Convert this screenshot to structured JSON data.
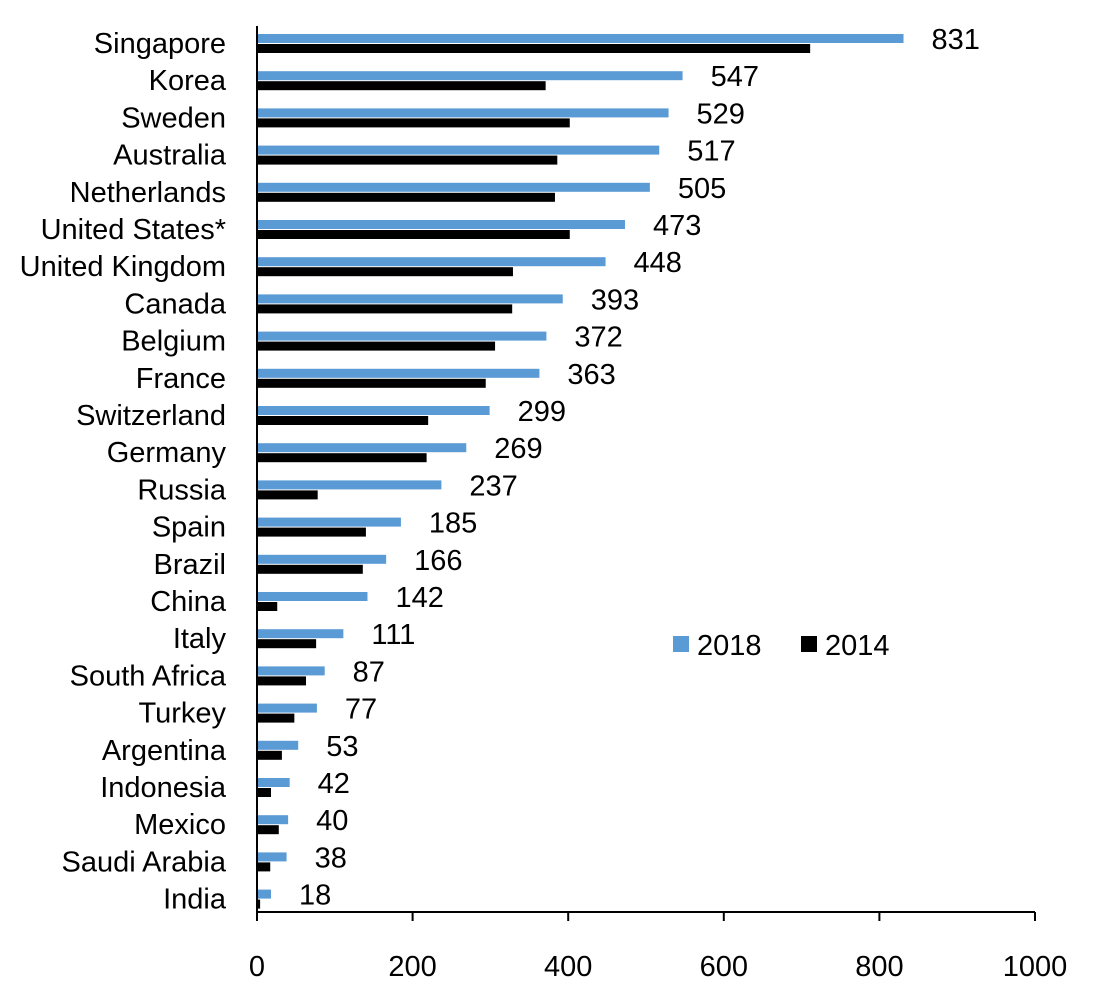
{
  "chart_data": {
    "type": "bar",
    "orientation": "horizontal",
    "title": "",
    "xlabel": "",
    "ylabel": "",
    "xlim": [
      0,
      1000
    ],
    "xticks": [
      0,
      200,
      400,
      600,
      800,
      1000
    ],
    "grid": false,
    "legend_position": "center-right",
    "categories": [
      "Singapore",
      "Korea",
      "Sweden",
      "Australia",
      "Netherlands",
      "United States*",
      "United Kingdom",
      "Canada",
      "Belgium",
      "France",
      "Switzerland",
      "Germany",
      "Russia",
      "Spain",
      "Brazil",
      "China",
      "Italy",
      "South Africa",
      "Turkey",
      "Argentina",
      "Indonesia",
      "Mexico",
      "Saudi Arabia",
      "India"
    ],
    "series": [
      {
        "name": "2018",
        "color": "#5B9BD5",
        "values": [
          831,
          547,
          529,
          517,
          505,
          473,
          448,
          393,
          372,
          363,
          299,
          269,
          237,
          185,
          166,
          142,
          111,
          87,
          77,
          53,
          42,
          40,
          38,
          18
        ],
        "data_labels": true
      },
      {
        "name": "2014",
        "color": "#000000",
        "values": [
          711,
          371,
          402,
          386,
          383,
          402,
          329,
          328,
          306,
          294,
          220,
          218,
          78,
          140,
          136,
          26,
          76,
          63,
          48,
          32,
          18,
          28,
          17,
          4
        ],
        "data_labels": false
      }
    ]
  }
}
